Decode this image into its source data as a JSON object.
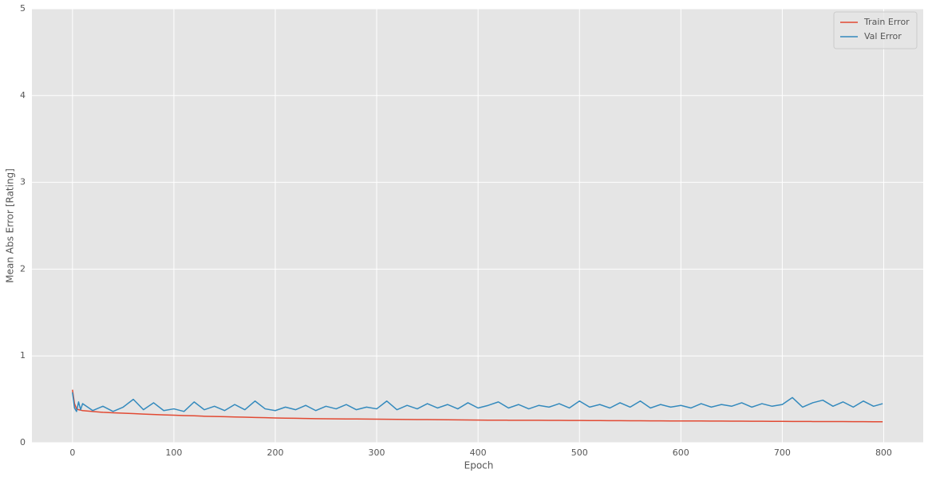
{
  "chart_data": {
    "type": "line",
    "xlabel": "Epoch",
    "ylabel": "Mean Abs Error [Rating]",
    "x": [
      0,
      2,
      4,
      6,
      8,
      10,
      20,
      30,
      40,
      50,
      60,
      70,
      80,
      90,
      100,
      110,
      120,
      130,
      140,
      150,
      160,
      170,
      180,
      190,
      200,
      210,
      220,
      230,
      240,
      250,
      260,
      270,
      280,
      290,
      300,
      310,
      320,
      330,
      340,
      350,
      360,
      370,
      380,
      390,
      400,
      410,
      420,
      430,
      440,
      450,
      460,
      470,
      480,
      490,
      500,
      510,
      520,
      530,
      540,
      550,
      560,
      570,
      580,
      590,
      600,
      610,
      620,
      630,
      640,
      650,
      660,
      670,
      680,
      690,
      700,
      710,
      720,
      730,
      740,
      750,
      760,
      770,
      780,
      790,
      799
    ],
    "series": [
      {
        "name": "Train Error",
        "color": "#e24a33",
        "values": [
          0.61,
          0.45,
          0.39,
          0.38,
          0.375,
          0.37,
          0.36,
          0.35,
          0.345,
          0.34,
          0.335,
          0.33,
          0.325,
          0.32,
          0.317,
          0.313,
          0.31,
          0.305,
          0.302,
          0.3,
          0.297,
          0.294,
          0.291,
          0.288,
          0.285,
          0.283,
          0.281,
          0.279,
          0.277,
          0.276,
          0.275,
          0.274,
          0.273,
          0.272,
          0.271,
          0.27,
          0.269,
          0.268,
          0.267,
          0.266,
          0.265,
          0.264,
          0.263,
          0.262,
          0.261,
          0.26,
          0.26,
          0.259,
          0.259,
          0.258,
          0.258,
          0.257,
          0.257,
          0.256,
          0.256,
          0.255,
          0.255,
          0.254,
          0.254,
          0.253,
          0.253,
          0.252,
          0.252,
          0.251,
          0.251,
          0.25,
          0.25,
          0.249,
          0.249,
          0.248,
          0.248,
          0.247,
          0.247,
          0.246,
          0.246,
          0.245,
          0.245,
          0.244,
          0.244,
          0.243,
          0.243,
          0.242,
          0.242,
          0.241,
          0.241
        ]
      },
      {
        "name": "Val Error",
        "color": "#348abd",
        "values": [
          0.58,
          0.4,
          0.36,
          0.47,
          0.38,
          0.45,
          0.37,
          0.42,
          0.36,
          0.41,
          0.5,
          0.38,
          0.46,
          0.37,
          0.39,
          0.36,
          0.47,
          0.38,
          0.42,
          0.37,
          0.44,
          0.38,
          0.48,
          0.39,
          0.37,
          0.41,
          0.38,
          0.43,
          0.37,
          0.42,
          0.39,
          0.44,
          0.38,
          0.41,
          0.39,
          0.48,
          0.38,
          0.43,
          0.39,
          0.45,
          0.4,
          0.44,
          0.39,
          0.46,
          0.4,
          0.43,
          0.47,
          0.4,
          0.44,
          0.39,
          0.43,
          0.41,
          0.45,
          0.4,
          0.48,
          0.41,
          0.44,
          0.4,
          0.46,
          0.41,
          0.48,
          0.4,
          0.44,
          0.41,
          0.43,
          0.4,
          0.45,
          0.41,
          0.44,
          0.42,
          0.46,
          0.41,
          0.45,
          0.42,
          0.44,
          0.52,
          0.41,
          0.46,
          0.49,
          0.42,
          0.47,
          0.41,
          0.48,
          0.42,
          0.45
        ]
      }
    ],
    "xlim": [
      -40,
      839
    ],
    "xticks": [
      0,
      100,
      200,
      300,
      400,
      500,
      600,
      700,
      800
    ],
    "ylim": [
      0,
      5
    ],
    "yticks": [
      0,
      1,
      2,
      3,
      4,
      5
    ],
    "grid": true,
    "legend": "upper right"
  }
}
